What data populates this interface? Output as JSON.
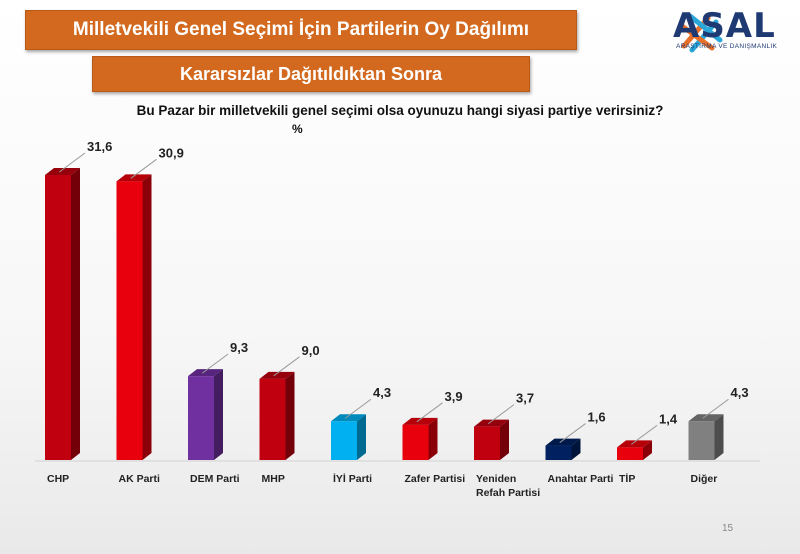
{
  "header": {
    "title": "Milletvekili Genel Seçimi İçin Partilerin Oy Dağılımı",
    "subtitle": "Kararsızlar Dağıtıldıktan Sonra"
  },
  "logo": {
    "name": "ASAL",
    "tagline": "ARAŞTIRMA VE DANIŞMANLIK",
    "colors": [
      "#e8702a",
      "#2aa7d8",
      "#1f3a73"
    ]
  },
  "page_number": "15",
  "chart_data": {
    "type": "bar",
    "title": "Bu Pazar bir milletvekili genel seçimi olsa oyunuzu hangi siyasi partiye verirsiniz?",
    "unit": "%",
    "categories": [
      "CHP",
      "AK Parti",
      "DEM Parti",
      "MHP",
      "İYİ Parti",
      "Zafer Partisi",
      "Yeniden Refah Partisi",
      "Anahtar Parti",
      "TİP",
      "Diğer"
    ],
    "values": [
      31.6,
      30.9,
      9.3,
      9.0,
      4.3,
      3.9,
      3.7,
      1.6,
      1.4,
      4.3
    ],
    "value_labels": [
      "31,6",
      "30,9",
      "9,3",
      "9,0",
      "4,3",
      "3,9",
      "3,7",
      "1,6",
      "1,4",
      "4,3"
    ],
    "colors": [
      "#c0000f",
      "#e8000d",
      "#7030a0",
      "#c0000f",
      "#00b0f0",
      "#e8000d",
      "#c0000f",
      "#002060",
      "#e8000d",
      "#808080"
    ],
    "ylim": [
      0,
      32
    ],
    "grid": false,
    "legend": "none"
  }
}
